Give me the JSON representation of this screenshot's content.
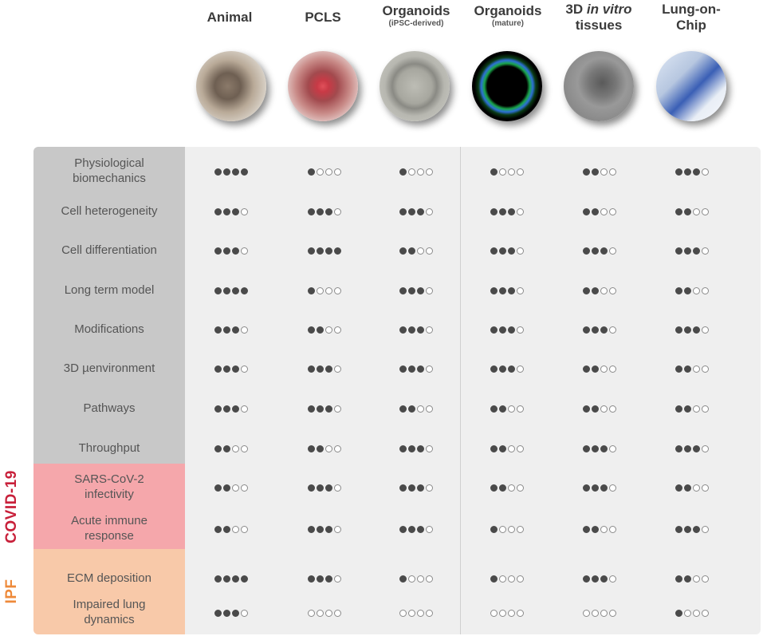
{
  "columns": [
    {
      "title": "Animal",
      "title2": "",
      "sub": "",
      "italic": "",
      "photo": "mouse-photo"
    },
    {
      "title": "PCLS",
      "title2": "",
      "sub": "",
      "italic": "",
      "photo": "pcls-dish-photo"
    },
    {
      "title": "Organoids",
      "title2": "",
      "sub": "(iPSC-derived)",
      "italic": "",
      "photo": "ipsc-organoid-micrograph"
    },
    {
      "title": "Organoids",
      "title2": "",
      "sub": "(mature)",
      "italic": "",
      "photo": "mature-organoid-fluorescence"
    },
    {
      "title": "3D ",
      "title2": "tissues",
      "sub": "",
      "italic": "in vitro",
      "photo": "3d-tissue-micrograph"
    },
    {
      "title": "Lung-on-",
      "title2": "Chip",
      "sub": "",
      "italic": "",
      "photo": "lung-chip-device-photo"
    }
  ],
  "rows": [
    {
      "label": [
        "Physiological",
        "biomechanics"
      ],
      "scores": [
        4,
        1,
        1,
        1,
        2,
        3
      ]
    },
    {
      "label": [
        "Cell heterogeneity"
      ],
      "scores": [
        3,
        3,
        3,
        3,
        2,
        2
      ]
    },
    {
      "label": [
        "Cell differentiation"
      ],
      "scores": [
        3,
        4,
        2,
        3,
        3,
        3
      ]
    },
    {
      "label": [
        "Long term model"
      ],
      "scores": [
        4,
        1,
        3,
        3,
        2,
        2
      ]
    },
    {
      "label": [
        "Modifications"
      ],
      "scores": [
        3,
        2,
        3,
        3,
        3,
        3
      ]
    },
    {
      "label": [
        "3D µenvironment"
      ],
      "scores": [
        3,
        3,
        3,
        3,
        2,
        2
      ]
    },
    {
      "label": [
        "Pathways"
      ],
      "scores": [
        3,
        3,
        2,
        2,
        2,
        2
      ]
    },
    {
      "label": [
        "Throughput"
      ],
      "scores": [
        2,
        2,
        3,
        2,
        3,
        3
      ]
    },
    {
      "label": [
        "SARS-CoV-2",
        "infectivity"
      ],
      "scores": [
        2,
        3,
        3,
        2,
        3,
        2
      ]
    },
    {
      "label": [
        "Acute immune",
        "response"
      ],
      "scores": [
        2,
        3,
        3,
        1,
        2,
        3
      ]
    },
    {
      "label": [
        "ECM deposition"
      ],
      "scores": [
        4,
        3,
        1,
        1,
        3,
        2
      ]
    },
    {
      "label": [
        "Impaired lung",
        "dynamics"
      ],
      "scores": [
        3,
        0,
        0,
        0,
        0,
        1
      ]
    }
  ],
  "groups": {
    "covid": {
      "label": "COVID-19",
      "color": "#c8203a"
    },
    "ipf": {
      "label": "IPF",
      "color": "#ee8a3a"
    }
  },
  "max_score": 4
}
